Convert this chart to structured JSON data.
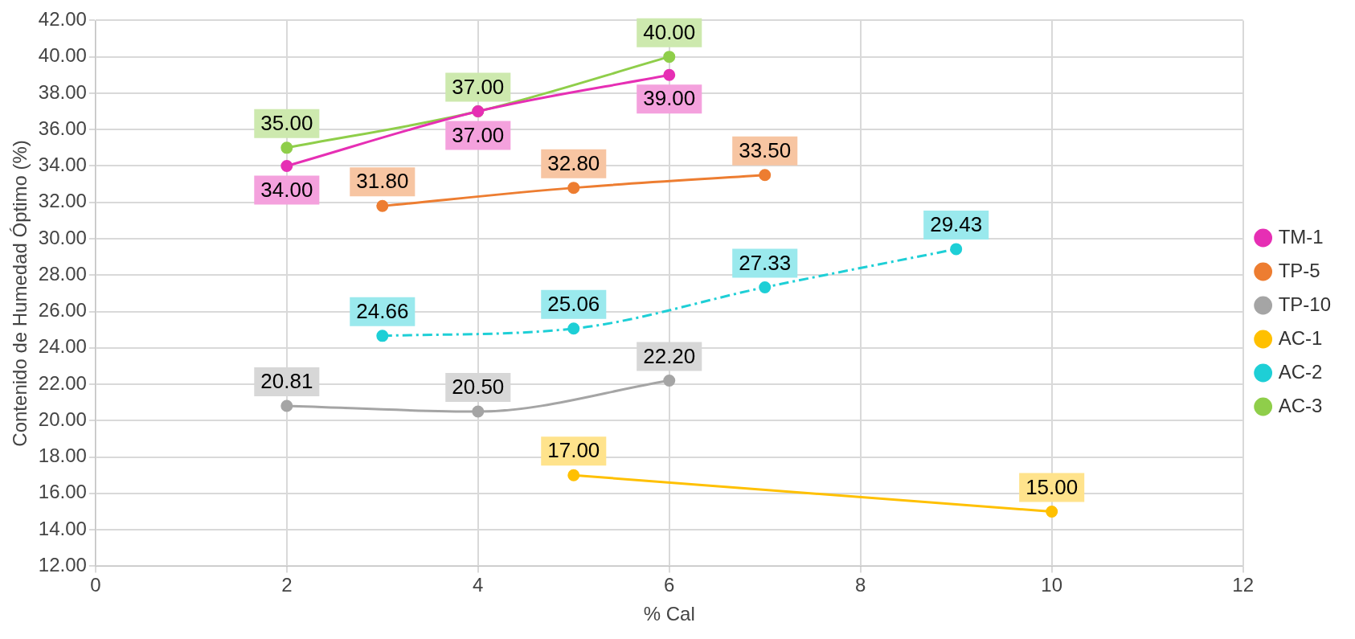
{
  "chart_data": {
    "type": "line",
    "xlabel": "% Cal",
    "ylabel": "Contenido de Humedad Óptimo (%)",
    "xlim": [
      0,
      12
    ],
    "xticks": [
      0,
      2,
      4,
      6,
      8,
      10,
      12
    ],
    "ylim": [
      12,
      42
    ],
    "yticks": [
      {
        "value": 12,
        "label": "12.00"
      },
      {
        "value": 14,
        "label": "14.00"
      },
      {
        "value": 16,
        "label": "16.00"
      },
      {
        "value": 18,
        "label": "18.00"
      },
      {
        "value": 20,
        "label": "20.00"
      },
      {
        "value": 22,
        "label": "22.00"
      },
      {
        "value": 24,
        "label": "24.00"
      },
      {
        "value": 26,
        "label": "26.00"
      },
      {
        "value": 28,
        "label": "28.00"
      },
      {
        "value": 30,
        "label": "30.00"
      },
      {
        "value": 32,
        "label": "32.00"
      },
      {
        "value": 34,
        "label": "34.00"
      },
      {
        "value": 36,
        "label": "36.00"
      },
      {
        "value": 38,
        "label": "38.00"
      },
      {
        "value": 40,
        "label": "40.00"
      },
      {
        "value": 42,
        "label": "42.00"
      }
    ],
    "grid": true,
    "legend": "right",
    "marker": "circle",
    "series": [
      {
        "name": "TM-1",
        "color": "#e62fb4",
        "x": [
          2,
          4,
          6
        ],
        "values": [
          34.0,
          37.0,
          39.0
        ],
        "value_labels": [
          "34.00",
          "37.00",
          "39.00"
        ]
      },
      {
        "name": "TP-5",
        "color": "#ed7d31",
        "x": [
          3,
          5,
          7
        ],
        "values": [
          31.8,
          32.8,
          33.5
        ],
        "value_labels": [
          "31.80",
          "32.80",
          "33.50"
        ]
      },
      {
        "name": "TP-10",
        "color": "#a5a5a5",
        "x": [
          2,
          4,
          6
        ],
        "values": [
          20.81,
          20.5,
          22.2
        ],
        "value_labels": [
          "20.81",
          "20.50",
          "22.20"
        ]
      },
      {
        "name": "AC-1",
        "color": "#ffc000",
        "x": [
          5,
          10
        ],
        "values": [
          17.0,
          15.0
        ],
        "value_labels": [
          "17.00",
          "15.00"
        ]
      },
      {
        "name": "AC-2",
        "color": "#1ecfd6",
        "x": [
          3,
          5,
          7,
          9
        ],
        "values": [
          24.66,
          25.06,
          27.33,
          29.43
        ],
        "value_labels": [
          "24.66",
          "25.06",
          "27.33",
          "29.43"
        ],
        "line_style": "dashed"
      },
      {
        "name": "AC-3",
        "color": "#8fce4a",
        "x": [
          2,
          4,
          6
        ],
        "values": [
          35.0,
          37.0,
          40.0
        ],
        "value_labels": [
          "35.00",
          "37.00",
          "40.00"
        ]
      }
    ]
  }
}
